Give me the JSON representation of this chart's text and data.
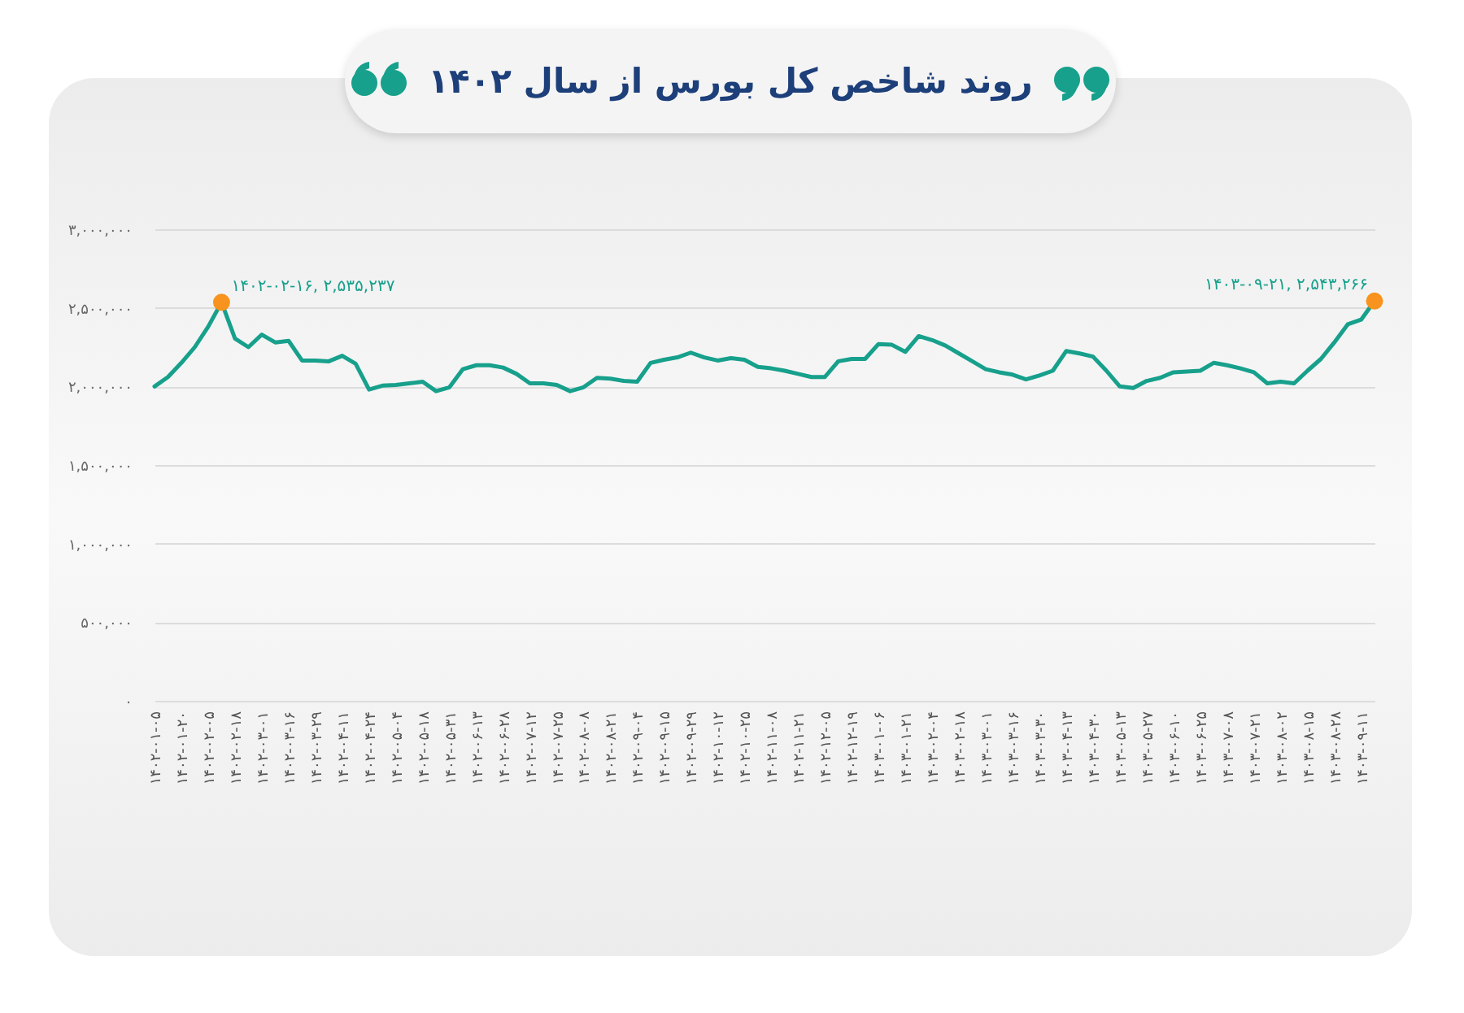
{
  "chart_data": {
    "type": "line",
    "title": "روند شاخص کل بورس از سال ۱۴۰۲",
    "categories": [
      "۱۴۰۲-۰۱-۰۵",
      null,
      "۱۴۰۲-۰۱-۲۰",
      null,
      "۱۴۰۲-۰۲-۰۵",
      null,
      "۱۴۰۲-۰۲-۱۸",
      null,
      "۱۴۰۲-۰۳-۰۱",
      null,
      "۱۴۰۲-۰۳-۱۶",
      null,
      "۱۴۰۲-۰۳-۲۹",
      null,
      "۱۴۰۲-۰۴-۱۱",
      null,
      "۱۴۰۲-۰۴-۲۴",
      null,
      "۱۴۰۲-۰۵-۰۴",
      null,
      "۱۴۰۲-۰۵-۱۸",
      null,
      "۱۴۰۲-۰۵-۳۱",
      null,
      "۱۴۰۲-۰۶-۱۳",
      null,
      "۱۴۰۲-۰۶-۲۸",
      null,
      "۱۴۰۲-۰۷-۱۲",
      null,
      "۱۴۰۲-۰۷-۲۵",
      null,
      "۱۴۰۲-۰۸-۰۸",
      null,
      "۱۴۰۲-۰۸-۲۱",
      null,
      "۱۴۰۲-۰۹-۰۴",
      null,
      "۱۴۰۲-۰۹-۱۵",
      null,
      "۱۴۰۲-۰۹-۲۹",
      null,
      "۱۴۰۲-۱۰-۱۲",
      null,
      "۱۴۰۲-۱۰-۲۵",
      null,
      "۱۴۰۲-۱۱-۰۸",
      null,
      "۱۴۰۲-۱۱-۲۱",
      null,
      "۱۴۰۲-۱۲-۰۵",
      null,
      "۱۴۰۲-۱۲-۱۹",
      null,
      "۱۴۰۳-۰۱-۰۶",
      null,
      "۱۴۰۳-۰۱-۲۱",
      null,
      "۱۴۰۳-۰۲-۰۴",
      null,
      "۱۴۰۳-۰۲-۱۸",
      null,
      "۱۴۰۳-۰۳-۰۱",
      null,
      "۱۴۰۳-۰۳-۱۶",
      null,
      "۱۴۰۳-۰۳-۳۰",
      null,
      "۱۴۰۳-۰۴-۱۳",
      null,
      "۱۴۰۳-۰۴-۳۰",
      null,
      "۱۴۰۳-۰۵-۱۳",
      null,
      "۱۴۰۳-۰۵-۲۷",
      null,
      "۱۴۰۳-۰۶-۱۰",
      null,
      "۱۴۰۳-۰۶-۲۵",
      null,
      "۱۴۰۳-۰۷-۰۸",
      null,
      "۱۴۰۳-۰۷-۲۱",
      null,
      "۱۴۰۳-۰۸-۰۲",
      null,
      "۱۴۰۳-۰۸-۱۵",
      null,
      "۱۴۰۳-۰۸-۲۸",
      null,
      "۱۴۰۳-۰۹-۱۱",
      null
    ],
    "series": [
      {
        "color": "#17a08c",
        "values": [
          2000000,
          2060000,
          2150000,
          2250000,
          2380000,
          2535237,
          2305000,
          2250000,
          2330000,
          2280000,
          2290000,
          2165000,
          2165000,
          2160000,
          2195000,
          2145000,
          1980000,
          2005000,
          2010000,
          2020000,
          2030000,
          1970000,
          1995000,
          2110000,
          2135000,
          2135000,
          2120000,
          2080000,
          2020000,
          2020000,
          2010000,
          1970000,
          1995000,
          2055000,
          2050000,
          2035000,
          2030000,
          2150000,
          2170000,
          2185000,
          2215000,
          2185000,
          2165000,
          2180000,
          2170000,
          2125000,
          2115000,
          2100000,
          2080000,
          2060000,
          2060000,
          2160000,
          2175000,
          2175000,
          2270000,
          2265000,
          2220000,
          2320000,
          2295000,
          2260000,
          2210000,
          2160000,
          2110000,
          2090000,
          2075000,
          2045000,
          2070000,
          2100000,
          2225000,
          2210000,
          2190000,
          2100000,
          2000000,
          1990000,
          2035000,
          2055000,
          2090000,
          2095000,
          2100000,
          2150000,
          2135000,
          2115000,
          2090000,
          2020000,
          2030000,
          2020000,
          2100000,
          2175000,
          2280000,
          2395000,
          2425000,
          2543266
        ]
      },
      {
        "type": "scatter",
        "color": "#f7931e",
        "values": [
          null,
          null,
          null,
          null,
          null,
          2535237,
          null,
          null,
          null,
          null,
          null,
          null,
          null,
          null,
          null,
          null,
          null,
          null,
          null,
          null,
          null,
          null,
          null,
          null,
          null,
          null,
          null,
          null,
          null,
          null,
          null,
          null,
          null,
          null,
          null,
          null,
          null,
          null,
          null,
          null,
          null,
          null,
          null,
          null,
          null,
          null,
          null,
          null,
          null,
          null,
          null,
          null,
          null,
          null,
          null,
          null,
          null,
          null,
          null,
          null,
          null,
          null,
          null,
          null,
          null,
          null,
          null,
          null,
          null,
          null,
          null,
          null,
          null,
          null,
          null,
          null,
          null,
          null,
          null,
          null,
          null,
          null,
          null,
          null,
          null,
          null,
          null,
          null,
          null,
          null,
          null,
          2543266
        ]
      }
    ],
    "ylim": [
      0,
      3000000
    ],
    "yticks": [
      {
        "value": 0,
        "label": "۰"
      },
      {
        "value": 500000,
        "label": "۵۰۰,۰۰۰"
      },
      {
        "value": 1000000,
        "label": "۱,۰۰۰,۰۰۰"
      },
      {
        "value": 1500000,
        "label": "۱,۵۰۰,۰۰۰"
      },
      {
        "value": 2000000,
        "label": "۲,۰۰۰,۰۰۰"
      },
      {
        "value": 2500000,
        "label": "۲,۵۰۰,۰۰۰"
      },
      {
        "value": 3000000,
        "label": "۳,۰۰۰,۰۰۰"
      }
    ],
    "grid": "y",
    "annotations": [
      "۱۴۰۲-۰۲-۱۶, ۲,۵۳۵,۲۳۷",
      "۱۴۰۳-۰۹-۲۱, ۲,۵۴۳,۲۶۶"
    ]
  }
}
